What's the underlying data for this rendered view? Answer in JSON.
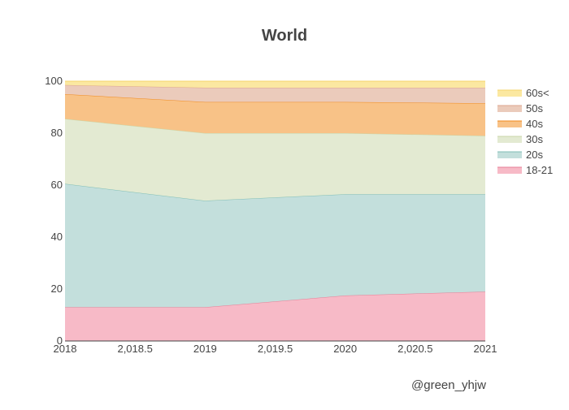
{
  "chart_data": {
    "type": "area",
    "stacking": "cumulative-percent",
    "title": "World",
    "xlabel": "",
    "ylabel": "",
    "x": [
      2018,
      2019,
      2020,
      2021
    ],
    "xlim": [
      2018,
      2021
    ],
    "ylim": [
      0,
      100
    ],
    "x_ticks": [
      2018,
      2018.5,
      2019,
      2019.5,
      2020,
      2020.5,
      2021
    ],
    "x_tick_labels": [
      "2018",
      "2,018.5",
      "2019",
      "2,019.5",
      "2020",
      "2,020.5",
      "2021"
    ],
    "y_ticks": [
      0,
      20,
      40,
      60,
      80,
      100
    ],
    "y_tick_labels": [
      "0",
      "20",
      "40",
      "60",
      "80",
      "100"
    ],
    "grid": false,
    "legend_position": "top-right",
    "series": [
      {
        "name": "18-21",
        "fill": "#f7bac7",
        "line": "#e77d95",
        "values": [
          13,
          13,
          17.5,
          19
        ]
      },
      {
        "name": "20s",
        "fill": "#c3dfdc",
        "line": "#7fbdb6",
        "values": [
          47.5,
          41,
          39,
          37.5
        ]
      },
      {
        "name": "30s",
        "fill": "#e3ead2",
        "line": "#c9d6a8",
        "values": [
          25,
          26,
          23.5,
          22.5
        ]
      },
      {
        "name": "40s",
        "fill": "#f8c287",
        "line": "#f08a1c",
        "values": [
          9.5,
          12,
          12,
          12.5
        ]
      },
      {
        "name": "50s",
        "fill": "#ebcbbb",
        "line": "#dea58d",
        "values": [
          3.5,
          5.5,
          5.5,
          6
        ]
      },
      {
        "name": "60s<",
        "fill": "#fbe8a1",
        "line": "#f5d46a",
        "values": [
          1.5,
          2.5,
          2.5,
          2.5
        ]
      }
    ]
  },
  "watermark": "@green_yhjw"
}
